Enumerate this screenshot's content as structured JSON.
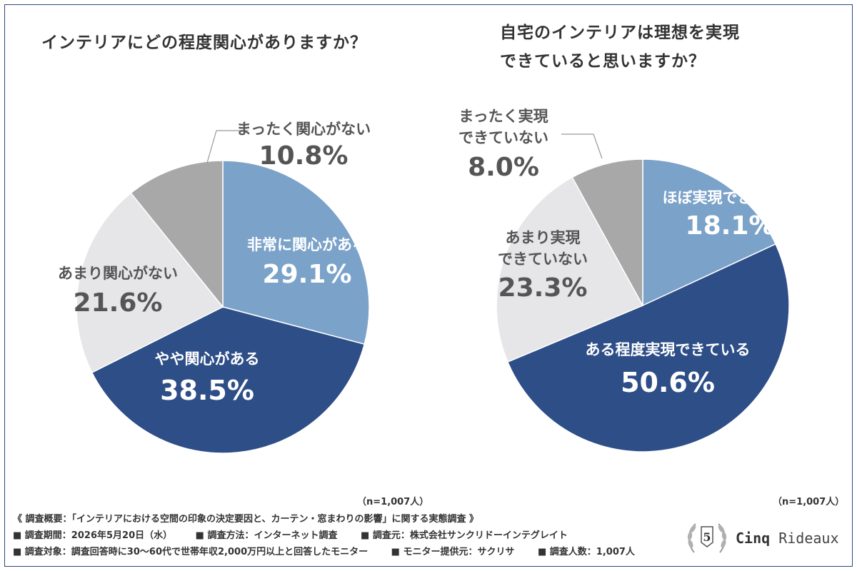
{
  "chart_data": [
    {
      "type": "pie",
      "title": "インテリアにどの程度関心がありますか？",
      "n_label": "（n=1,007人）",
      "slices": [
        {
          "name": "非常に関心がある",
          "value": 29.1,
          "label": "29.1%",
          "color": "#7ba2c9",
          "text_color": "#ffffff"
        },
        {
          "name": "やや関心がある",
          "value": 38.5,
          "label": "38.5%",
          "color": "#2e4e88",
          "text_color": "#ffffff"
        },
        {
          "name": "あまり関心がない",
          "value": 21.6,
          "label": "21.6%",
          "color": "#e6e6e8",
          "text_color": "#555555"
        },
        {
          "name": "まったく関心がない",
          "value": 10.8,
          "label": "10.8%",
          "color": "#a8a8a8",
          "text_color": "#555555"
        }
      ]
    },
    {
      "type": "pie",
      "title": "自宅のインテリアは理想を実現できていると思いますか？",
      "title_lines": [
        "自宅のインテリアは理想を実現",
        "できていると思いますか？"
      ],
      "n_label": "（n=1,007人）",
      "slices": [
        {
          "name": "ほぼ実現できている",
          "value": 18.1,
          "label": "18.1%",
          "color": "#7ba2c9",
          "text_color": "#ffffff"
        },
        {
          "name": "ある程度実現できている",
          "value": 50.6,
          "label": "50.6%",
          "color": "#2e4e88",
          "text_color": "#ffffff"
        },
        {
          "name": "あまり実現できていない",
          "name_lines": [
            "あまり実現",
            "できていない"
          ],
          "value": 23.3,
          "label": "23.3%",
          "color": "#e6e6e8",
          "text_color": "#555555"
        },
        {
          "name": "まったく実現できていない",
          "name_lines": [
            "まったく実現",
            "できていない"
          ],
          "value": 8.0,
          "label": "8.0%",
          "color": "#a8a8a8",
          "text_color": "#555555"
        }
      ]
    }
  ],
  "survey": {
    "line1": "《 調査概要：「インテリアにおける空間の印象の決定要因と、カーテン・窓まわりの影響」に関する実態調査 》",
    "period": "■ 調査期間：2026年5月20日（水）",
    "method": "■ 調査方法：インターネット調査",
    "source": "■ 調査元：株式会社サンクリドーインテグレイト",
    "target": "■ 調査対象：調査回答時に30〜60代で世帯年収2,000万円以上と回答したモニター",
    "provider": "■ モニター提供元：サクリサ",
    "count": "■ 調査人数：1,007人"
  },
  "logo": {
    "brand_bold": "Cinq",
    "brand_rest": "Rideaux",
    "badge_number": "5"
  }
}
